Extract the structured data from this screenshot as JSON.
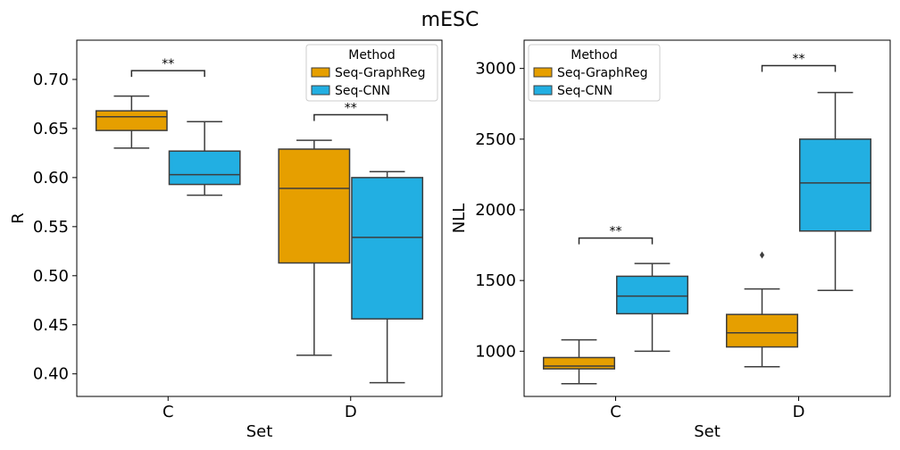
{
  "figure": {
    "suptitle": "mESC"
  },
  "legend": {
    "title": "Method",
    "entries": [
      {
        "name": "Seq-GraphReg",
        "color": "#e69f00"
      },
      {
        "name": "Seq-CNN",
        "color": "#22afe2"
      }
    ]
  },
  "chart_data": [
    {
      "type": "box",
      "title": "",
      "xlabel": "Set",
      "ylabel": "R",
      "categories": [
        "C",
        "D"
      ],
      "ylim": [
        0.377,
        0.74
      ],
      "yticks": [
        "0.40",
        "0.45",
        "0.50",
        "0.55",
        "0.60",
        "0.65",
        "0.70"
      ],
      "legend_position": "upper right",
      "series": [
        {
          "name": "Seq-GraphReg",
          "color": "#e69f00",
          "boxes": [
            {
              "whisker_low": 0.63,
              "q1": 0.648,
              "median": 0.662,
              "q3": 0.668,
              "whisker_high": 0.683,
              "outliers": []
            },
            {
              "whisker_low": 0.419,
              "q1": 0.513,
              "median": 0.589,
              "q3": 0.629,
              "whisker_high": 0.638,
              "outliers": []
            }
          ]
        },
        {
          "name": "Seq-CNN",
          "color": "#22afe2",
          "boxes": [
            {
              "whisker_low": 0.582,
              "q1": 0.593,
              "median": 0.603,
              "q3": 0.627,
              "whisker_high": 0.657,
              "outliers": []
            },
            {
              "whisker_low": 0.391,
              "q1": 0.456,
              "median": 0.539,
              "q3": 0.6,
              "whisker_high": 0.606,
              "outliers": []
            }
          ]
        }
      ],
      "annotations": [
        {
          "category": "C",
          "text": "**",
          "y": 0.709
        },
        {
          "category": "D",
          "text": "**",
          "y": 0.664
        }
      ]
    },
    {
      "type": "box",
      "title": "",
      "xlabel": "Set",
      "ylabel": "NLL",
      "categories": [
        "C",
        "D"
      ],
      "ylim": [
        680,
        3200
      ],
      "yticks": [
        "1000",
        "1500",
        "2000",
        "2500",
        "3000"
      ],
      "legend_position": "upper left",
      "series": [
        {
          "name": "Seq-GraphReg",
          "color": "#e69f00",
          "boxes": [
            {
              "whisker_low": 770,
              "q1": 875,
              "median": 895,
              "q3": 955,
              "whisker_high": 1080,
              "outliers": []
            },
            {
              "whisker_low": 890,
              "q1": 1030,
              "median": 1130,
              "q3": 1260,
              "whisker_high": 1440,
              "outliers": [
                1680
              ]
            }
          ]
        },
        {
          "name": "Seq-CNN",
          "color": "#22afe2",
          "boxes": [
            {
              "whisker_low": 1000,
              "q1": 1265,
              "median": 1390,
              "q3": 1530,
              "whisker_high": 1620,
              "outliers": []
            },
            {
              "whisker_low": 1430,
              "q1": 1850,
              "median": 2190,
              "q3": 2500,
              "whisker_high": 2830,
              "outliers": []
            }
          ]
        }
      ],
      "annotations": [
        {
          "category": "C",
          "text": "**",
          "y": 1800
        },
        {
          "category": "D",
          "text": "**",
          "y": 3020
        }
      ]
    }
  ]
}
